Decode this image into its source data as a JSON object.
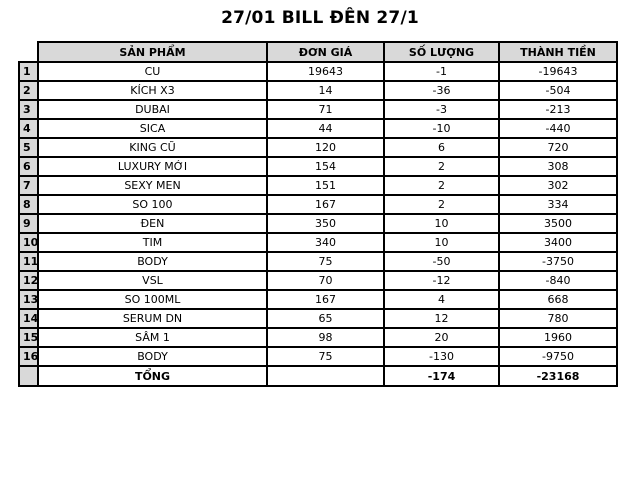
{
  "title": "27/01 BILL ĐÊN 27/1",
  "colors": {
    "header_bg": "#d9d9d9",
    "border": "#000000",
    "page_bg": "#ffffff"
  },
  "table": {
    "headers": [
      "SẢN PHẨM",
      "ĐƠN GIÁ",
      "SỐ LƯỢNG",
      "THÀNH TIỀN"
    ],
    "rows": [
      {
        "num": "1",
        "product": "CU",
        "unit_price": "19643",
        "quantity": "-1",
        "total": "-19643"
      },
      {
        "num": "2",
        "product": "KÍCH X3",
        "unit_price": "14",
        "quantity": "-36",
        "total": "-504"
      },
      {
        "num": "3",
        "product": "DUBAI",
        "unit_price": "71",
        "quantity": "-3",
        "total": "-213"
      },
      {
        "num": "4",
        "product": "SICA",
        "unit_price": "44",
        "quantity": "-10",
        "total": "-440"
      },
      {
        "num": "5",
        "product": "KING CŨ",
        "unit_price": "120",
        "quantity": "6",
        "total": "720"
      },
      {
        "num": "6",
        "product": "LUXURY MỚI",
        "unit_price": "154",
        "quantity": "2",
        "total": "308"
      },
      {
        "num": "7",
        "product": "SEXY MEN",
        "unit_price": "151",
        "quantity": "2",
        "total": "302"
      },
      {
        "num": "8",
        "product": "SO 100",
        "unit_price": "167",
        "quantity": "2",
        "total": "334"
      },
      {
        "num": "9",
        "product": "ĐEN",
        "unit_price": "350",
        "quantity": "10",
        "total": "3500"
      },
      {
        "num": "10",
        "product": "TIM",
        "unit_price": "340",
        "quantity": "10",
        "total": "3400"
      },
      {
        "num": "11",
        "product": "BODY",
        "unit_price": "75",
        "quantity": "-50",
        "total": "-3750"
      },
      {
        "num": "12",
        "product": "VSL",
        "unit_price": "70",
        "quantity": "-12",
        "total": "-840"
      },
      {
        "num": "13",
        "product": "SO 100ML",
        "unit_price": "167",
        "quantity": "4",
        "total": "668"
      },
      {
        "num": "14",
        "product": "SERUM DN",
        "unit_price": "65",
        "quantity": "12",
        "total": "780"
      },
      {
        "num": "15",
        "product": "SÂM 1",
        "unit_price": "98",
        "quantity": "20",
        "total": "1960"
      },
      {
        "num": "16",
        "product": "BODY",
        "unit_price": "75",
        "quantity": "-130",
        "total": "-9750"
      }
    ],
    "total_row": {
      "num": "",
      "label": "TỔNG",
      "unit_price": "",
      "quantity": "-174",
      "total": "-23168"
    }
  }
}
